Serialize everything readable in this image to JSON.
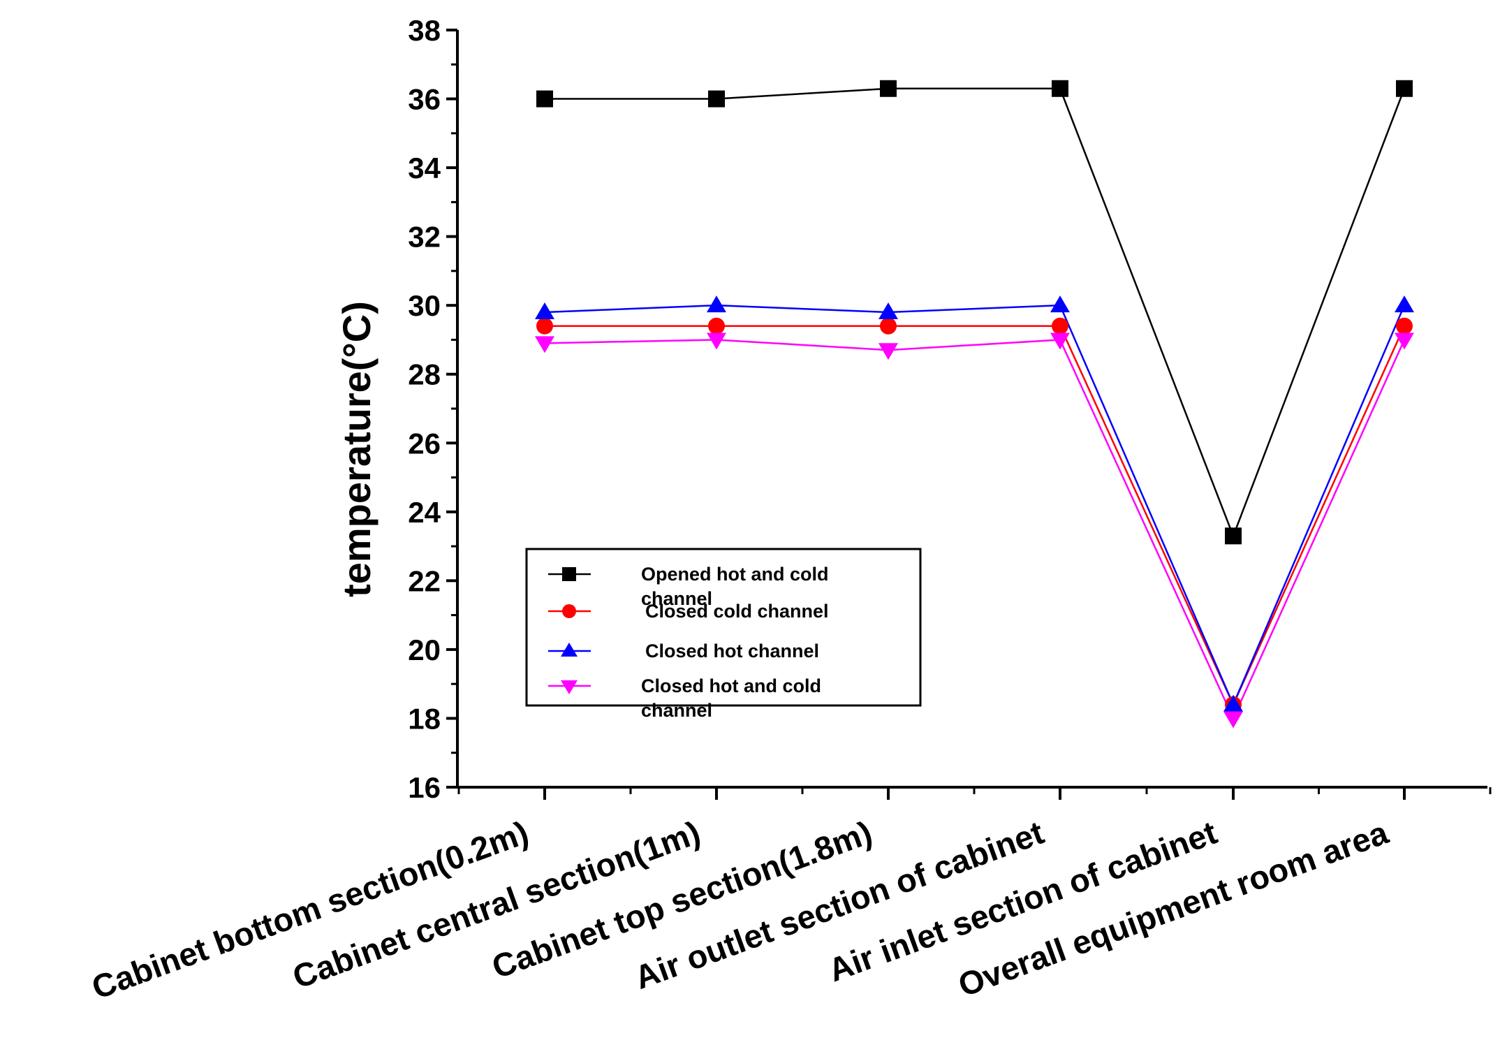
{
  "chart_data": {
    "type": "line",
    "title": "",
    "xlabel": "",
    "ylabel": "temperature(°C)",
    "ylim": [
      16,
      38
    ],
    "yticks": [
      "16",
      "18",
      "20",
      "22",
      "24",
      "26",
      "28",
      "30",
      "32",
      "34",
      "36",
      "38"
    ],
    "grid": false,
    "legend_position": "lower-left",
    "categories": [
      "Cabinet bottom section(0.2m)",
      "Cabinet central section(1m)",
      "Cabinet top section(1.8m)",
      "Air outlet section of cabinet",
      "Air inlet section of cabinet",
      "Overall equipment room area"
    ],
    "series": [
      {
        "name": "Opened hot and cold channel",
        "legend_lines": [
          "Opened hot and cold",
          "channel"
        ],
        "color": "#000000",
        "marker": "square",
        "values": [
          36.0,
          36.0,
          36.3,
          36.3,
          23.3,
          36.3
        ]
      },
      {
        "name": "Closed cold channel",
        "legend_lines": [
          "Closed cold channel"
        ],
        "color": "#ff0000",
        "marker": "circle",
        "values": [
          29.4,
          29.4,
          29.4,
          29.4,
          18.4,
          29.4
        ]
      },
      {
        "name": "Closed hot channel",
        "legend_lines": [
          "Closed hot channel"
        ],
        "color": "#0000ff",
        "marker": "triangle-up",
        "values": [
          29.8,
          30.0,
          29.8,
          30.0,
          18.4,
          30.0
        ]
      },
      {
        "name": "Closed hot and cold channel",
        "legend_lines": [
          "Closed hot and cold",
          "channel"
        ],
        "color": "#ff00ff",
        "marker": "triangle-down",
        "values": [
          28.9,
          29.0,
          28.7,
          29.0,
          18.0,
          29.0
        ]
      }
    ]
  }
}
